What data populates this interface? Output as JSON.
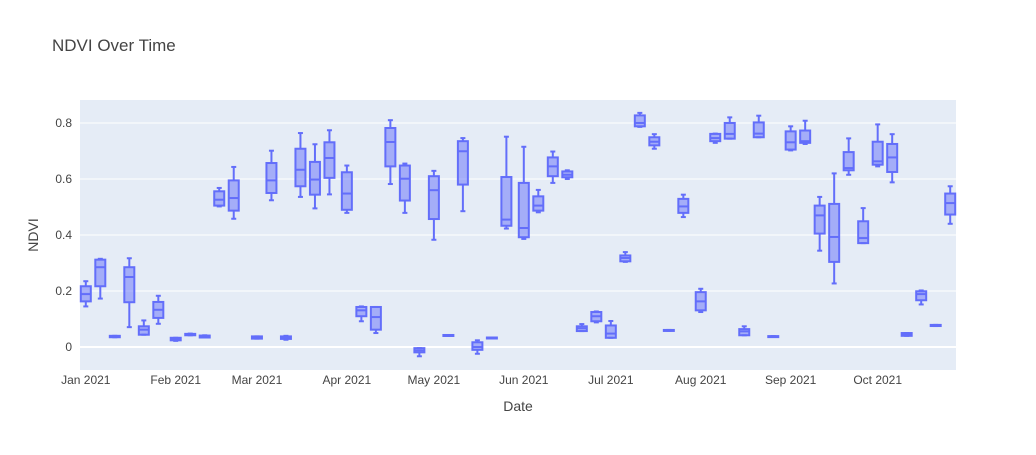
{
  "chart_data": {
    "type": "box",
    "title": "NDVI Over Time",
    "xlabel": "Date",
    "ylabel": "NDVI",
    "xlim": [
      "2020-12-30",
      "2021-10-28"
    ],
    "ylim": [
      -0.082,
      0.882
    ],
    "grid": true,
    "legend": "none",
    "color": "#636efa",
    "x_ticks": [
      {
        "date": "2021-01-01",
        "label": "Jan 2021"
      },
      {
        "date": "2021-02-01",
        "label": "Feb 2021"
      },
      {
        "date": "2021-03-01",
        "label": "Mar 2021"
      },
      {
        "date": "2021-04-01",
        "label": "Apr 2021"
      },
      {
        "date": "2021-05-01",
        "label": "May 2021"
      },
      {
        "date": "2021-06-01",
        "label": "Jun 2021"
      },
      {
        "date": "2021-07-01",
        "label": "Jul 2021"
      },
      {
        "date": "2021-08-01",
        "label": "Aug 2021"
      },
      {
        "date": "2021-09-01",
        "label": "Sep 2021"
      },
      {
        "date": "2021-10-01",
        "label": "Oct 2021"
      }
    ],
    "y_ticks": [
      {
        "value": 0,
        "label": "0"
      },
      {
        "value": 0.2,
        "label": "0.2"
      },
      {
        "value": 0.4,
        "label": "0.4"
      },
      {
        "value": 0.6,
        "label": "0.6"
      },
      {
        "value": 0.8,
        "label": "0.8"
      }
    ],
    "boxes": [
      {
        "date": "2021-01-01",
        "min": 0.145,
        "q1": 0.163,
        "median": 0.189,
        "q3": 0.217,
        "max": 0.235
      },
      {
        "date": "2021-01-06",
        "min": 0.173,
        "q1": 0.217,
        "median": 0.285,
        "q3": 0.312,
        "max": 0.315
      },
      {
        "date": "2021-01-11",
        "min": 0.035,
        "q1": 0.035,
        "median": 0.037,
        "q3": 0.04,
        "max": 0.04
      },
      {
        "date": "2021-01-16",
        "min": 0.071,
        "q1": 0.16,
        "median": 0.25,
        "q3": 0.285,
        "max": 0.317
      },
      {
        "date": "2021-01-21",
        "min": 0.044,
        "q1": 0.044,
        "median": 0.062,
        "q3": 0.074,
        "max": 0.095
      },
      {
        "date": "2021-01-26",
        "min": 0.083,
        "q1": 0.104,
        "median": 0.133,
        "q3": 0.161,
        "max": 0.183
      },
      {
        "date": "2021-02-01",
        "min": 0.022,
        "q1": 0.024,
        "median": 0.028,
        "q3": 0.033,
        "max": 0.033
      },
      {
        "date": "2021-02-06",
        "min": 0.042,
        "q1": 0.042,
        "median": 0.044,
        "q3": 0.047,
        "max": 0.048
      },
      {
        "date": "2021-02-11",
        "min": 0.034,
        "q1": 0.034,
        "median": 0.037,
        "q3": 0.041,
        "max": 0.042
      },
      {
        "date": "2021-02-16",
        "min": 0.502,
        "q1": 0.505,
        "median": 0.526,
        "q3": 0.556,
        "max": 0.568
      },
      {
        "date": "2021-02-21",
        "min": 0.458,
        "q1": 0.487,
        "median": 0.532,
        "q3": 0.595,
        "max": 0.643
      },
      {
        "date": "2021-03-01",
        "min": 0.03,
        "q1": 0.03,
        "median": 0.033,
        "q3": 0.038,
        "max": 0.038
      },
      {
        "date": "2021-03-06",
        "min": 0.524,
        "q1": 0.55,
        "median": 0.595,
        "q3": 0.657,
        "max": 0.701
      },
      {
        "date": "2021-03-11",
        "min": 0.026,
        "q1": 0.029,
        "median": 0.033,
        "q3": 0.038,
        "max": 0.04
      },
      {
        "date": "2021-03-16",
        "min": 0.536,
        "q1": 0.574,
        "median": 0.633,
        "q3": 0.708,
        "max": 0.764
      },
      {
        "date": "2021-03-21",
        "min": 0.495,
        "q1": 0.544,
        "median": 0.598,
        "q3": 0.661,
        "max": 0.724
      },
      {
        "date": "2021-03-26",
        "min": 0.545,
        "q1": 0.604,
        "median": 0.675,
        "q3": 0.731,
        "max": 0.774
      },
      {
        "date": "2021-04-01",
        "min": 0.479,
        "q1": 0.49,
        "median": 0.548,
        "q3": 0.624,
        "max": 0.648
      },
      {
        "date": "2021-04-06",
        "min": 0.092,
        "q1": 0.11,
        "median": 0.131,
        "q3": 0.143,
        "max": 0.145
      },
      {
        "date": "2021-04-11",
        "min": 0.05,
        "q1": 0.062,
        "median": 0.107,
        "q3": 0.143,
        "max": 0.143
      },
      {
        "date": "2021-04-16",
        "min": 0.582,
        "q1": 0.645,
        "median": 0.732,
        "q3": 0.782,
        "max": 0.81
      },
      {
        "date": "2021-04-21",
        "min": 0.479,
        "q1": 0.523,
        "median": 0.601,
        "q3": 0.648,
        "max": 0.655
      },
      {
        "date": "2021-04-26",
        "min": -0.033,
        "q1": -0.019,
        "median": -0.012,
        "q3": -0.004,
        "max": -0.004
      },
      {
        "date": "2021-05-01",
        "min": 0.383,
        "q1": 0.457,
        "median": 0.56,
        "q3": 0.61,
        "max": 0.629
      },
      {
        "date": "2021-05-06",
        "min": 0.041,
        "q1": 0.041,
        "median": 0.042,
        "q3": 0.043,
        "max": 0.043
      },
      {
        "date": "2021-05-11",
        "min": 0.485,
        "q1": 0.58,
        "median": 0.699,
        "q3": 0.735,
        "max": 0.746
      },
      {
        "date": "2021-05-16",
        "min": -0.024,
        "q1": -0.01,
        "median": 0.0,
        "q3": 0.017,
        "max": 0.024
      },
      {
        "date": "2021-05-21",
        "min": 0.032,
        "q1": 0.032,
        "median": 0.033,
        "q3": 0.034,
        "max": 0.034
      },
      {
        "date": "2021-05-26",
        "min": 0.423,
        "q1": 0.433,
        "median": 0.455,
        "q3": 0.607,
        "max": 0.751
      },
      {
        "date": "2021-06-01",
        "min": 0.386,
        "q1": 0.392,
        "median": 0.425,
        "q3": 0.586,
        "max": 0.715
      },
      {
        "date": "2021-06-06",
        "min": 0.481,
        "q1": 0.487,
        "median": 0.505,
        "q3": 0.538,
        "max": 0.561
      },
      {
        "date": "2021-06-11",
        "min": 0.586,
        "q1": 0.61,
        "median": 0.645,
        "q3": 0.677,
        "max": 0.698
      },
      {
        "date": "2021-06-16",
        "min": 0.6,
        "q1": 0.606,
        "median": 0.615,
        "q3": 0.627,
        "max": 0.631
      },
      {
        "date": "2021-06-21",
        "min": 0.057,
        "q1": 0.057,
        "median": 0.067,
        "q3": 0.074,
        "max": 0.082
      },
      {
        "date": "2021-06-26",
        "min": 0.088,
        "q1": 0.092,
        "median": 0.11,
        "q3": 0.125,
        "max": 0.127
      },
      {
        "date": "2021-07-01",
        "min": 0.033,
        "q1": 0.033,
        "median": 0.048,
        "q3": 0.077,
        "max": 0.093
      },
      {
        "date": "2021-07-06",
        "min": 0.304,
        "q1": 0.306,
        "median": 0.318,
        "q3": 0.327,
        "max": 0.339
      },
      {
        "date": "2021-07-11",
        "min": 0.786,
        "q1": 0.788,
        "median": 0.8,
        "q3": 0.827,
        "max": 0.836
      },
      {
        "date": "2021-07-16",
        "min": 0.708,
        "q1": 0.72,
        "median": 0.733,
        "q3": 0.749,
        "max": 0.76
      },
      {
        "date": "2021-07-21",
        "min": 0.058,
        "q1": 0.058,
        "median": 0.06,
        "q3": 0.061,
        "max": 0.061
      },
      {
        "date": "2021-07-26",
        "min": 0.464,
        "q1": 0.479,
        "median": 0.502,
        "q3": 0.529,
        "max": 0.544
      },
      {
        "date": "2021-08-01",
        "min": 0.125,
        "q1": 0.131,
        "median": 0.163,
        "q3": 0.196,
        "max": 0.208
      },
      {
        "date": "2021-08-06",
        "min": 0.729,
        "q1": 0.735,
        "median": 0.746,
        "q3": 0.761,
        "max": 0.762
      },
      {
        "date": "2021-08-11",
        "min": 0.744,
        "q1": 0.744,
        "median": 0.761,
        "q3": 0.8,
        "max": 0.82
      },
      {
        "date": "2021-08-16",
        "min": 0.042,
        "q1": 0.042,
        "median": 0.056,
        "q3": 0.064,
        "max": 0.074
      },
      {
        "date": "2021-08-21",
        "min": 0.749,
        "q1": 0.749,
        "median": 0.762,
        "q3": 0.802,
        "max": 0.826
      },
      {
        "date": "2021-08-26",
        "min": 0.037,
        "q1": 0.037,
        "median": 0.038,
        "q3": 0.039,
        "max": 0.039
      },
      {
        "date": "2021-09-01",
        "min": 0.702,
        "q1": 0.705,
        "median": 0.731,
        "q3": 0.77,
        "max": 0.788
      },
      {
        "date": "2021-09-06",
        "min": 0.725,
        "q1": 0.729,
        "median": 0.735,
        "q3": 0.773,
        "max": 0.808
      },
      {
        "date": "2021-09-11",
        "min": 0.344,
        "q1": 0.405,
        "median": 0.47,
        "q3": 0.505,
        "max": 0.536
      },
      {
        "date": "2021-09-16",
        "min": 0.227,
        "q1": 0.304,
        "median": 0.393,
        "q3": 0.511,
        "max": 0.62
      },
      {
        "date": "2021-09-21",
        "min": 0.615,
        "q1": 0.631,
        "median": 0.639,
        "q3": 0.696,
        "max": 0.745
      },
      {
        "date": "2021-09-26",
        "min": 0.371,
        "q1": 0.371,
        "median": 0.389,
        "q3": 0.449,
        "max": 0.496
      },
      {
        "date": "2021-10-01",
        "min": 0.645,
        "q1": 0.651,
        "median": 0.663,
        "q3": 0.733,
        "max": 0.795
      },
      {
        "date": "2021-10-06",
        "min": 0.588,
        "q1": 0.625,
        "median": 0.677,
        "q3": 0.725,
        "max": 0.76
      },
      {
        "date": "2021-10-11",
        "min": 0.04,
        "q1": 0.04,
        "median": 0.044,
        "q3": 0.05,
        "max": 0.05
      },
      {
        "date": "2021-10-16",
        "min": 0.152,
        "q1": 0.167,
        "median": 0.189,
        "q3": 0.199,
        "max": 0.202
      },
      {
        "date": "2021-10-21",
        "min": 0.075,
        "q1": 0.075,
        "median": 0.077,
        "q3": 0.079,
        "max": 0.079
      },
      {
        "date": "2021-10-26",
        "min": 0.44,
        "q1": 0.473,
        "median": 0.514,
        "q3": 0.548,
        "max": 0.574
      }
    ]
  }
}
